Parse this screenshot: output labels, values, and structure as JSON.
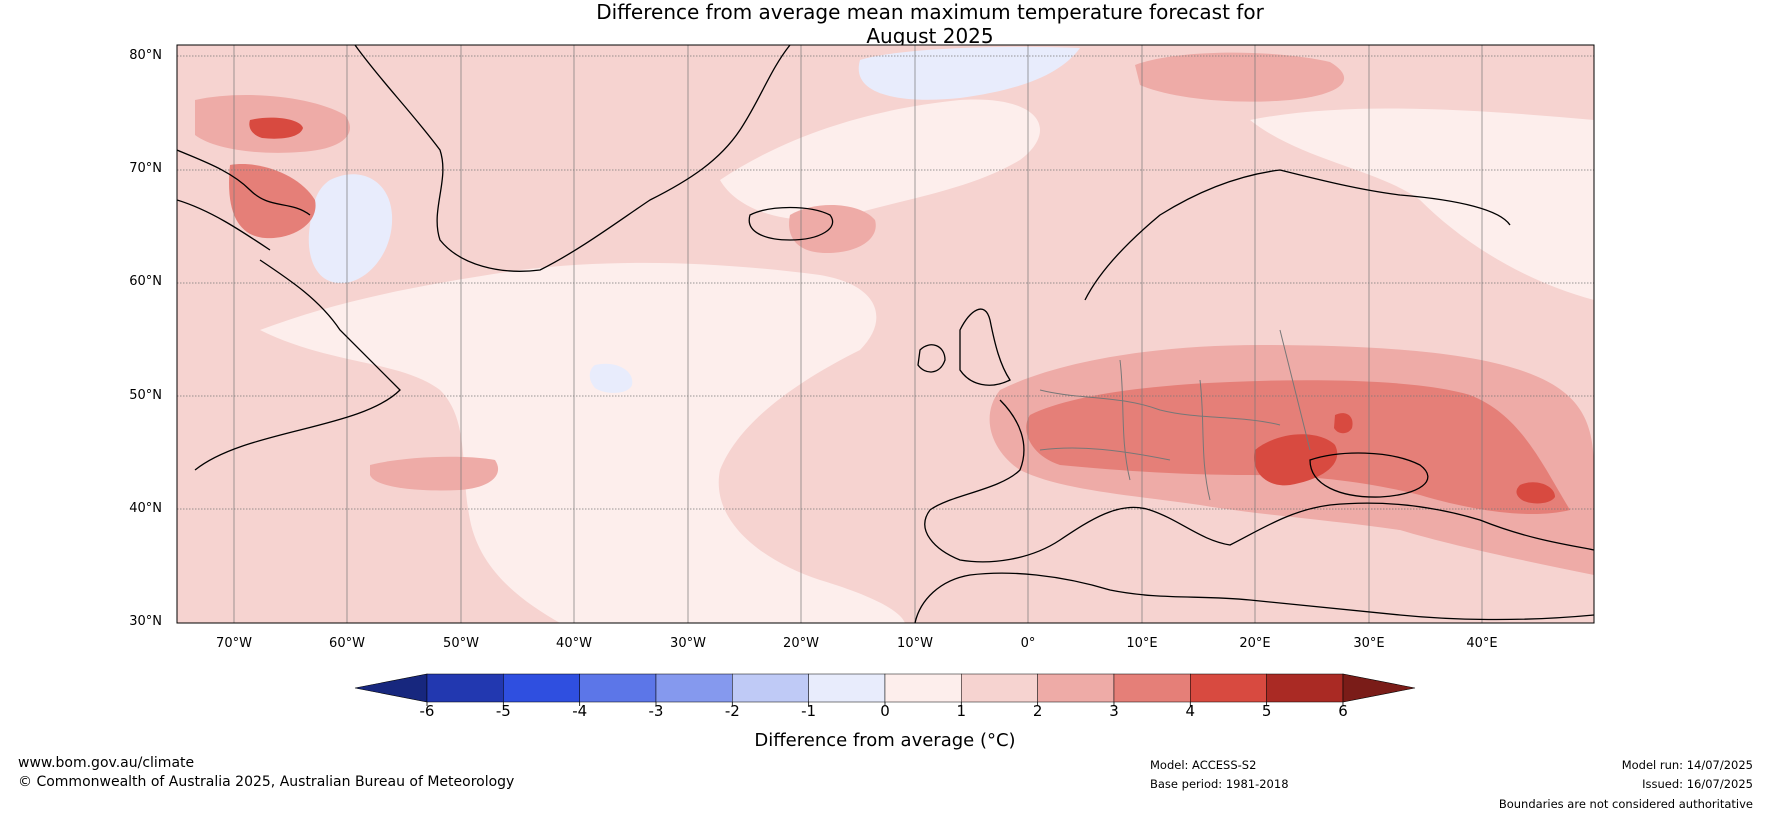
{
  "title_line1": "Difference from average mean maximum temperature forecast for",
  "title_line2": "August 2025",
  "lat_labels": [
    "80°N",
    "70°N",
    "60°N",
    "50°N",
    "40°N",
    "30°N"
  ],
  "lon_labels": [
    "70°W",
    "60°W",
    "50°W",
    "40°W",
    "30°W",
    "20°W",
    "10°W",
    "0°",
    "10°E",
    "20°E",
    "30°E",
    "40°E"
  ],
  "colorbar": {
    "ticks": [
      "-6",
      "-5",
      "-4",
      "-3",
      "-2",
      "-1",
      "0",
      "1",
      "2",
      "3",
      "4",
      "5",
      "6"
    ],
    "label": "Difference from average (°C)",
    "colors": [
      "#2238b0",
      "#2f4fe0",
      "#5c76e8",
      "#8599ee",
      "#bfcaf6",
      "#e8ecfc",
      "#fdeeec",
      "#f6d3d0",
      "#eeaba7",
      "#e57f78",
      "#d84a40",
      "#aa2a24"
    ],
    "under_color": "#17277e",
    "over_color": "#7a1c18"
  },
  "footer": {
    "website": "www.bom.gov.au/climate",
    "copyright": "© Commonwealth of Australia 2025, Australian Bureau of Meteorology",
    "model": "Model: ACCESS-S2",
    "base_period": "Base period: 1981-2018",
    "model_run": "Model run: 14/07/2025",
    "issued": "Issued: 16/07/2025",
    "disclaimer": "Boundaries are not considered authoritative"
  }
}
